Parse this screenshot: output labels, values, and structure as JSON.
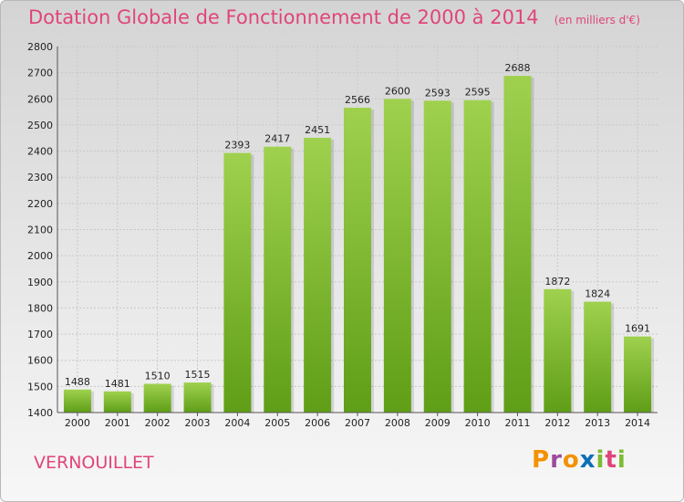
{
  "chart_data": {
    "type": "bar",
    "title": "Dotation Globale de Fonctionnement de 2000 à 2014",
    "subtitle": "(en milliers d'€)",
    "categories": [
      "2000",
      "2001",
      "2002",
      "2003",
      "2004",
      "2005",
      "2006",
      "2007",
      "2008",
      "2009",
      "2010",
      "2011",
      "2012",
      "2013",
      "2014"
    ],
    "values": [
      1488,
      1481,
      1510,
      1515,
      2393,
      2417,
      2451,
      2566,
      2600,
      2593,
      2595,
      2688,
      1872,
      1824,
      1691
    ],
    "ylim": [
      1400,
      2800
    ],
    "yticks": [
      1400,
      1500,
      1600,
      1700,
      1800,
      1900,
      2000,
      2100,
      2200,
      2300,
      2400,
      2500,
      2600,
      2700,
      2800
    ],
    "xlabel": "",
    "ylabel": "",
    "grid": true,
    "bar_color": "#7dbb32"
  },
  "footer": {
    "city": "VERNOUILLET",
    "logo_letters": [
      "P",
      "r",
      "o",
      "x",
      "i",
      "t",
      "i"
    ],
    "logo_colors": [
      "#f39200",
      "#9c4b9c",
      "#f39200",
      "#0d6eb5",
      "#7dbb32",
      "#e0457a",
      "#7dbb32"
    ]
  }
}
